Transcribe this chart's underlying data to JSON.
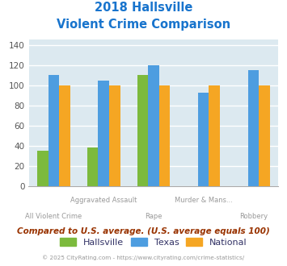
{
  "title_line1": "2018 Hallsville",
  "title_line2": "Violent Crime Comparison",
  "title_color": "#1874CD",
  "categories": [
    "All Violent Crime",
    "Aggravated Assault",
    "Rape",
    "Murder & Mans...",
    "Robbery"
  ],
  "row1_labels": [
    "",
    "Aggravated Assault",
    "",
    "Murder & Mans...",
    ""
  ],
  "row2_labels": [
    "All Violent Crime",
    "",
    "Rape",
    "",
    "Robbery"
  ],
  "hallsville": [
    35,
    38,
    110,
    0,
    0
  ],
  "texas": [
    110,
    105,
    120,
    93,
    115
  ],
  "national": [
    100,
    100,
    100,
    100,
    100
  ],
  "hallsville_color": "#7cba3d",
  "texas_color": "#4d9de0",
  "national_color": "#f5a623",
  "ylim": [
    0,
    145
  ],
  "yticks": [
    0,
    20,
    40,
    60,
    80,
    100,
    120,
    140
  ],
  "background_color": "#dce9f0",
  "grid_color": "#ffffff",
  "footnote": "Compared to U.S. average. (U.S. average equals 100)",
  "footnote_color": "#993300",
  "copyright": "© 2025 CityRating.com - https://www.cityrating.com/crime-statistics/",
  "copyright_color": "#999999",
  "label_color": "#999999",
  "legend_text_color": "#333366"
}
